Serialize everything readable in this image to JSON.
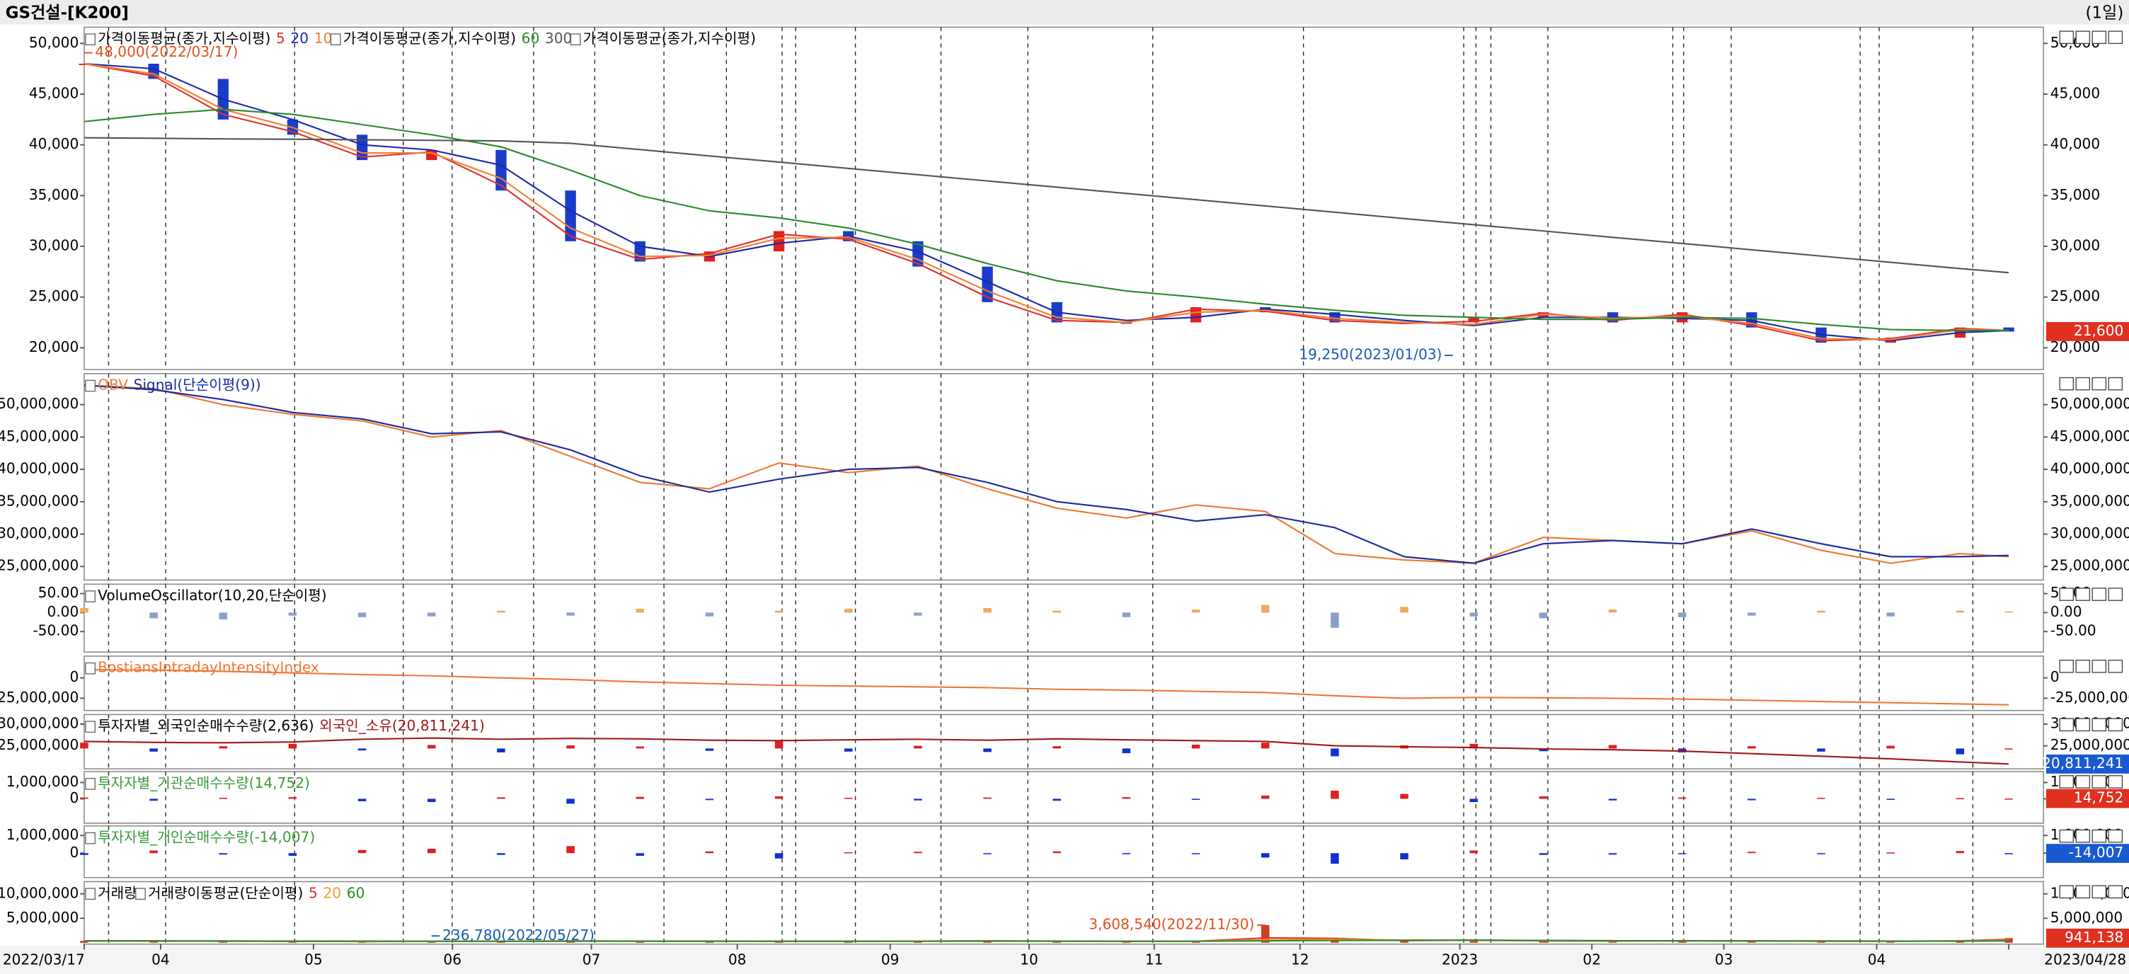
{
  "header": {
    "title": "GS건설-[K200]",
    "period": "(1일)"
  },
  "x_axis": {
    "xlim": [
      0,
      282
    ],
    "x": [
      0,
      10,
      20,
      30,
      40,
      50,
      60,
      70,
      80,
      90,
      100,
      110,
      120,
      130,
      140,
      150,
      160,
      170,
      180,
      190,
      200,
      210,
      220,
      230,
      240,
      250,
      260,
      270,
      277
    ],
    "xticks": [
      {
        "value": 0,
        "label": "2022/03/17"
      },
      {
        "value": 11,
        "label": "04"
      },
      {
        "value": 33,
        "label": "05"
      },
      {
        "value": 53,
        "label": "06"
      },
      {
        "value": 73,
        "label": "07"
      },
      {
        "value": 94,
        "label": "08"
      },
      {
        "value": 116,
        "label": "09"
      },
      {
        "value": 136,
        "label": "10"
      },
      {
        "value": 154,
        "label": "11"
      },
      {
        "value": 175,
        "label": "12"
      },
      {
        "value": 198,
        "label": "2023"
      },
      {
        "value": 217,
        "label": "02"
      },
      {
        "value": 236,
        "label": "03"
      },
      {
        "value": 258,
        "label": "04"
      },
      {
        "value": 277,
        "label": "2023/04/28"
      }
    ]
  },
  "chart_data": [
    {
      "type": "candlestick",
      "legend_labels": [
        "가격이동평균(종가,지수이평)",
        "가격이동평균(종가,지수이평)",
        "가격이동평균(종가,지수이평)"
      ],
      "ylim": [
        17860,
        51600
      ],
      "yticks": [
        {
          "value": 50000,
          "label": "50,000"
        },
        {
          "value": 45000,
          "label": "45,000"
        },
        {
          "value": 40000,
          "label": "40,000"
        },
        {
          "value": 35000,
          "label": "35,000"
        },
        {
          "value": 30000,
          "label": "30,000"
        },
        {
          "value": 25000,
          "label": "25,000"
        },
        {
          "value": 20000,
          "label": "20,000"
        }
      ],
      "series": [
        {
          "kind": "candle",
          "color": "#e02020",
          "negative_color": "#1a3cc8",
          "value_label": "21,600",
          "value_label_color": "#e03020",
          "values": [
            48000,
            46500,
            42500,
            41000,
            38500,
            39500,
            35500,
            30500,
            28500,
            29500,
            31500,
            30500,
            28000,
            24500,
            22500,
            22500,
            24000,
            23500,
            22500,
            22500,
            23000,
            23500,
            22500,
            23500,
            22000,
            20500,
            21000,
            22000,
            21600
          ]
        },
        {
          "name": "5",
          "kind": "line",
          "color": "#e03030",
          "values": [
            48000,
            46800,
            43000,
            41300,
            38800,
            39300,
            36000,
            31000,
            28700,
            29300,
            31200,
            30700,
            28300,
            25000,
            22700,
            22500,
            23800,
            23600,
            22700,
            22400,
            22600,
            23400,
            22700,
            23300,
            22200,
            20700,
            20900,
            21900,
            21700
          ]
        },
        {
          "name": "20",
          "kind": "line",
          "color": "#1a2aa8",
          "values": [
            48000,
            47500,
            44500,
            42500,
            40000,
            39500,
            38000,
            33500,
            30000,
            29000,
            30300,
            31000,
            29500,
            26500,
            23500,
            22700,
            23000,
            23800,
            23300,
            22700,
            22200,
            23000,
            23000,
            22900,
            22700,
            21300,
            20700,
            21500,
            21700
          ]
        },
        {
          "name": "10",
          "kind": "line",
          "color": "#f08030",
          "values": [
            48000,
            47000,
            43500,
            41700,
            39200,
            39200,
            36700,
            31800,
            29000,
            29100,
            30800,
            30900,
            28700,
            25600,
            23000,
            22500,
            23500,
            23700,
            22900,
            22500,
            22300,
            23300,
            22900,
            23100,
            22400,
            20900,
            20800,
            21800,
            21700
          ]
        },
        {
          "name": "60",
          "kind": "line",
          "color": "#2a8a2a",
          "values": [
            42300,
            43000,
            43500,
            43000,
            42000,
            41000,
            39800,
            37500,
            35000,
            33500,
            32800,
            31800,
            30200,
            28300,
            26600,
            25600,
            25000,
            24300,
            23700,
            23200,
            23000,
            22800,
            22800,
            23000,
            22900,
            22300,
            21800,
            21700,
            21700
          ]
        },
        {
          "name": "300",
          "kind": "line",
          "color": "#555555",
          "values": [
            40700,
            40650,
            40600,
            40550,
            40500,
            40450,
            40400,
            40150,
            39530,
            38910,
            38300,
            37680,
            37060,
            36450,
            35830,
            35210,
            34600,
            33980,
            33360,
            32740,
            32130,
            31510,
            30890,
            30280,
            29660,
            29040,
            28420,
            27810,
            27400
          ]
        }
      ],
      "annotations": [
        {
          "label": "48,000(2022/03/17)",
          "x": 0,
          "y": 48000,
          "color": "#e05020"
        },
        {
          "label": "19,250(2023/01/03)",
          "x": 197,
          "y": 19250,
          "color": "#1a5ab0"
        }
      ]
    },
    {
      "type": "line",
      "ylim": [
        22900000,
        54800000
      ],
      "yticks": [
        {
          "value": 50000000,
          "label": "50,000,000"
        },
        {
          "value": 45000000,
          "label": "45,000,000"
        },
        {
          "value": 40000000,
          "label": "40,000,000"
        },
        {
          "value": 35000000,
          "label": "35,000,000"
        },
        {
          "value": 30000000,
          "label": "30,000,000"
        },
        {
          "value": 25000000,
          "label": "25,000,000"
        }
      ],
      "series": [
        {
          "name": "OBV",
          "kind": "line",
          "color": "#ee7733",
          "values": [
            53000000,
            52500000,
            50000000,
            48500000,
            47500000,
            45000000,
            46000000,
            42000000,
            38000000,
            37000000,
            41000000,
            39500000,
            40500000,
            37000000,
            34000000,
            32500000,
            34500000,
            33500000,
            27000000,
            26000000,
            25500000,
            29500000,
            29000000,
            28500000,
            30500000,
            27500000,
            25500000,
            27000000,
            26500000
          ]
        },
        {
          "name": "Signal(단순이평(9))",
          "kind": "line",
          "color": "#1a2a9c",
          "values": [
            53000000,
            52300000,
            50800000,
            48800000,
            47800000,
            45500000,
            45800000,
            43000000,
            39000000,
            36500000,
            38500000,
            40000000,
            40300000,
            38000000,
            35000000,
            33800000,
            32000000,
            33000000,
            31000000,
            26500000,
            25500000,
            28500000,
            29000000,
            28500000,
            30800000,
            28500000,
            26500000,
            26500000,
            26700000
          ]
        }
      ]
    },
    {
      "type": "bar",
      "title": "VolumeOscillator(10,20,단순이평)",
      "title_color": "#000000",
      "ylim": [
        -104,
        75
      ],
      "yticks": [
        {
          "value": 50,
          "label": "50.00"
        },
        {
          "value": 0,
          "label": "0.00"
        },
        {
          "value": -50,
          "label": "-50.00"
        }
      ],
      "series": [
        {
          "kind": "bar",
          "color": "#f0a860",
          "negative_color": "#8aa0c8",
          "values": [
            12,
            -15,
            -18,
            -8,
            -12,
            -10,
            5,
            -8,
            10,
            -10,
            5,
            10,
            -8,
            12,
            5,
            -12,
            8,
            20,
            -40,
            15,
            -10,
            -15,
            8,
            -12,
            -8,
            5,
            -10,
            5,
            3
          ]
        }
      ]
    },
    {
      "type": "line",
      "title": "BostiansIntradayIntensityIndex",
      "title_color": "#ee7733",
      "ylim": [
        -40000000,
        26700000
      ],
      "yticks": [
        0,
        {
          "value": -25000000,
          "label": "-25,000,000"
        }
      ],
      "series": [
        {
          "kind": "line",
          "color": "#ee7733",
          "values": [
            10000000,
            9500000,
            8000000,
            6000000,
            4000000,
            2500000,
            0,
            -2000000,
            -5000000,
            -7000000,
            -9000000,
            -10000000,
            -11000000,
            -12000000,
            -14000000,
            -15000000,
            -16500000,
            -18000000,
            -22000000,
            -25000000,
            -24000000,
            -24500000,
            -25000000,
            -26000000,
            -27500000,
            -29000000,
            -30500000,
            -32000000,
            -33000000
          ]
        }
      ]
    },
    {
      "type": "bar",
      "title": "투자자별_외국인순매수수량(2,636)",
      "title_color": "#000000",
      "ylim": [
        19700000,
        32200000
      ],
      "y2lim": [
        -525000,
        875000
      ],
      "yticks": [
        {
          "value": 30000000,
          "label": "30,000,000"
        },
        {
          "value": 25000000,
          "label": "25,000,000"
        }
      ],
      "series": [
        {
          "kind": "bar",
          "axis": "y2",
          "color": "#e02020",
          "negative_color": "#1030d0",
          "values": [
            150000,
            -80000,
            60000,
            120000,
            -50000,
            90000,
            -100000,
            80000,
            50000,
            -60000,
            200000,
            -80000,
            70000,
            -90000,
            60000,
            -120000,
            100000,
            150000,
            -200000,
            80000,
            120000,
            -70000,
            90000,
            -100000,
            60000,
            -80000,
            70000,
            -150000,
            2636
          ]
        },
        {
          "name": "외국인_소유(20,811,241)",
          "kind": "line",
          "color": "#a01818",
          "value_label": "20,811,241",
          "value_label_color": "#1a5ad0",
          "values": [
            26000000,
            25800000,
            25700000,
            25900000,
            26500000,
            26800000,
            26500000,
            26700000,
            26600000,
            26300000,
            26200000,
            26400000,
            26500000,
            26300000,
            26600000,
            26400000,
            26200000,
            26000000,
            25000000,
            24800000,
            24600000,
            24300000,
            24100000,
            23800000,
            23200000,
            22600000,
            22000000,
            21300000,
            20811241
          ]
        }
      ]
    },
    {
      "type": "bar",
      "title": "투자자별_기관순매수수량(14,752)",
      "title_color": "#3a9a3a",
      "ylim": [
        -1500000,
        1670000
      ],
      "yticks": [
        {
          "value": 1000000,
          "label": "1,000,000"
        },
        0
      ],
      "series": [
        {
          "kind": "bar",
          "color": "#e02020",
          "negative_color": "#1030d0",
          "value_label": "14,752",
          "value_label_color": "#e03020",
          "values": [
            80000,
            -120000,
            60000,
            100000,
            -150000,
            -200000,
            90000,
            -300000,
            120000,
            -80000,
            150000,
            60000,
            -100000,
            80000,
            -120000,
            100000,
            -60000,
            200000,
            500000,
            300000,
            -200000,
            150000,
            -100000,
            80000,
            -90000,
            60000,
            -50000,
            40000,
            14752
          ]
        }
      ]
    },
    {
      "type": "bar",
      "title": "투자자별_개인순매수수량(-14,007)",
      "title_color": "#3a9a3a",
      "ylim": [
        -1380000,
        1540000
      ],
      "yticks": [
        {
          "value": 1000000,
          "label": "1,000,000"
        },
        0
      ],
      "series": [
        {
          "kind": "bar",
          "color": "#e02020",
          "negative_color": "#1030d0",
          "value_label": "-14,007",
          "value_label_color": "#1a5ad0",
          "values": [
            -100000,
            150000,
            -80000,
            -150000,
            180000,
            250000,
            -100000,
            400000,
            -150000,
            100000,
            -300000,
            50000,
            80000,
            -60000,
            100000,
            -50000,
            -40000,
            -250000,
            -600000,
            -350000,
            150000,
            -100000,
            -80000,
            -60000,
            80000,
            -50000,
            40000,
            120000,
            -14007
          ]
        }
      ]
    },
    {
      "type": "bar",
      "legend_labels": [
        "거래량",
        "거래량이동평균(단순이평)"
      ],
      "ylim": [
        -280000,
        12500000
      ],
      "yticks": [
        {
          "value": 10000000,
          "label": "10,000,000"
        },
        {
          "value": 5000000,
          "label": "5,000,000"
        }
      ],
      "series": [
        {
          "kind": "bar",
          "color": "#d04020",
          "negative_color": "#1030d0",
          "value_label": "941,138",
          "value_label_color": "#e03020",
          "values": [
            400000,
            300000,
            350000,
            250000,
            300000,
            236780,
            280000,
            400000,
            350000,
            300000,
            300000,
            280000,
            350000,
            400000,
            300000,
            250000,
            300000,
            3608540,
            500000,
            400000,
            600000,
            350000,
            300000,
            450000,
            350000,
            300000,
            300000,
            400000,
            941138
          ]
        },
        {
          "name": "5",
          "kind": "line",
          "color": "#e03030",
          "values": [
            380000,
            320000,
            330000,
            280000,
            260000,
            280000,
            300000,
            360000,
            340000,
            310000,
            300000,
            290000,
            330000,
            380000,
            320000,
            270000,
            300000,
            1000000,
            900000,
            450000,
            520000,
            380000,
            320000,
            420000,
            360000,
            310000,
            300000,
            380000,
            700000
          ]
        },
        {
          "name": "20",
          "kind": "line",
          "color": "#f0a020",
          "values": [
            400000,
            350000,
            340000,
            300000,
            280000,
            285000,
            300000,
            340000,
            340000,
            320000,
            305000,
            295000,
            320000,
            360000,
            330000,
            290000,
            300000,
            600000,
            700000,
            550000,
            500000,
            420000,
            350000,
            400000,
            370000,
            330000,
            310000,
            350000,
            500000
          ]
        },
        {
          "name": "60",
          "kind": "line",
          "color": "#2a8a2a",
          "values": [
            400000,
            380000,
            360000,
            340000,
            320000,
            305000,
            300000,
            320000,
            330000,
            330000,
            315000,
            305000,
            310000,
            330000,
            330000,
            315000,
            305000,
            400000,
            470000,
            500000,
            520000,
            480000,
            420000,
            400000,
            390000,
            360000,
            340000,
            345000,
            400000
          ]
        }
      ],
      "annotations": [
        {
          "label": "3,608,540(2022/11/30)",
          "x": 170,
          "y": 3608540,
          "color": "#e05020"
        },
        {
          "label": "236,780(2022/05/27)",
          "x": 50,
          "y": 236780,
          "color": "#1a5ab0"
        }
      ]
    }
  ]
}
